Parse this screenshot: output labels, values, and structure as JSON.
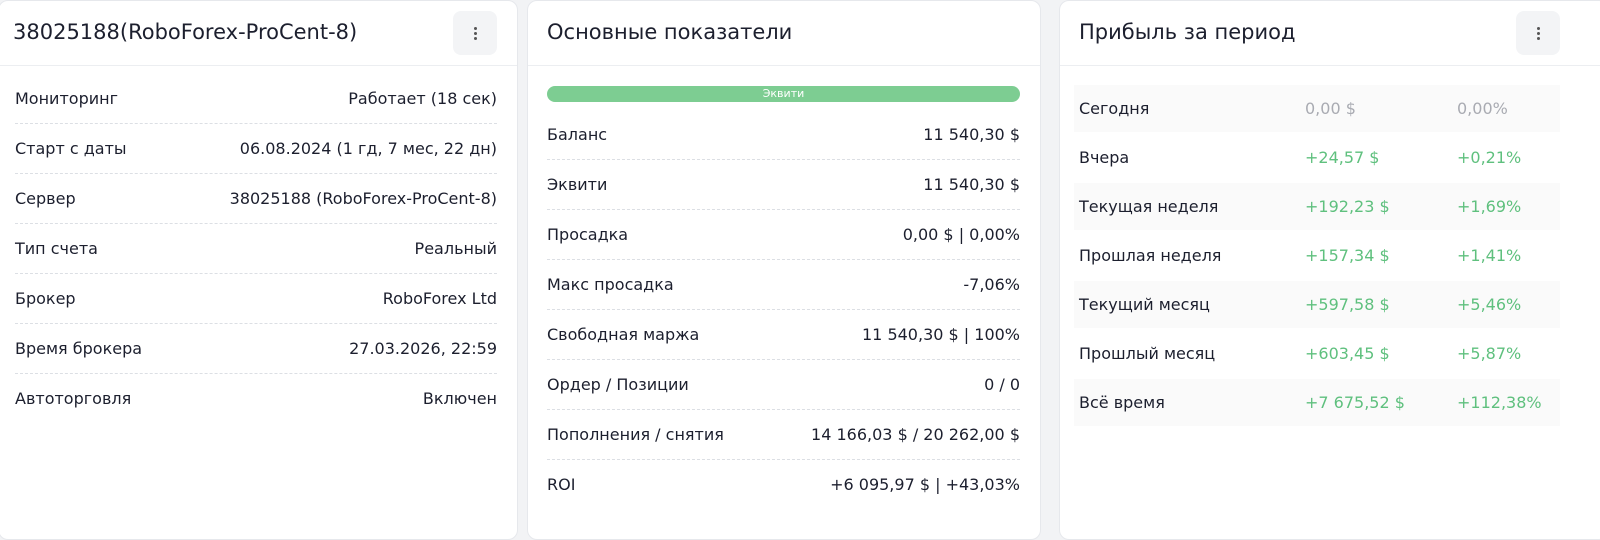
{
  "account": {
    "title": "38025188(RoboForex-ProCent-8)",
    "rows": [
      [
        "Мониторинг",
        "Работает (18 сек)"
      ],
      [
        "Старт с даты",
        "06.08.2024 (1 гд, 7 мес, 22 дн)"
      ],
      [
        "Сервер",
        "38025188 (RoboForex-ProCent-8)"
      ],
      [
        "Тип счета",
        "Реальный"
      ],
      [
        "Брокер",
        "RoboForex Ltd"
      ],
      [
        "Время брокера",
        "27.03.2026, 22:59"
      ],
      [
        "Автоторговля",
        "Включен"
      ]
    ]
  },
  "metrics": {
    "title": "Основные показатели",
    "bar_label": "Эквити",
    "rows": [
      [
        "Баланс",
        "11 540,30 $"
      ],
      [
        "Эквити",
        "11 540,30 $"
      ],
      [
        "Просадка",
        "0,00 $ | 0,00%"
      ],
      [
        "Макс просадка",
        "-7,06%"
      ],
      [
        "Свободная маржа",
        "11 540,30 $ | 100%"
      ],
      [
        "Ордер / Позиции",
        "0 / 0"
      ],
      [
        "Пополнения / снятия",
        "14 166,03 $ / 20 262,00 $"
      ],
      [
        "ROI",
        "+6 095,97 $ | +43,03%"
      ]
    ]
  },
  "profit": {
    "title": "Прибыль за период",
    "rows": [
      [
        "Сегодня",
        "0,00 $",
        "0,00%"
      ],
      [
        "Вчера",
        "+24,57 $",
        "+0,21%"
      ],
      [
        "Текущая неделя",
        "+192,23 $",
        "+1,69%"
      ],
      [
        "Прошлая неделя",
        "+157,34 $",
        "+1,41%"
      ],
      [
        "Текущий месяц",
        "+597,58 $",
        "+5,46%"
      ],
      [
        "Прошлый месяц",
        "+603,45 $",
        "+5,87%"
      ],
      [
        "Всё время",
        "+7 675,52 $",
        "+112,38%"
      ]
    ]
  }
}
